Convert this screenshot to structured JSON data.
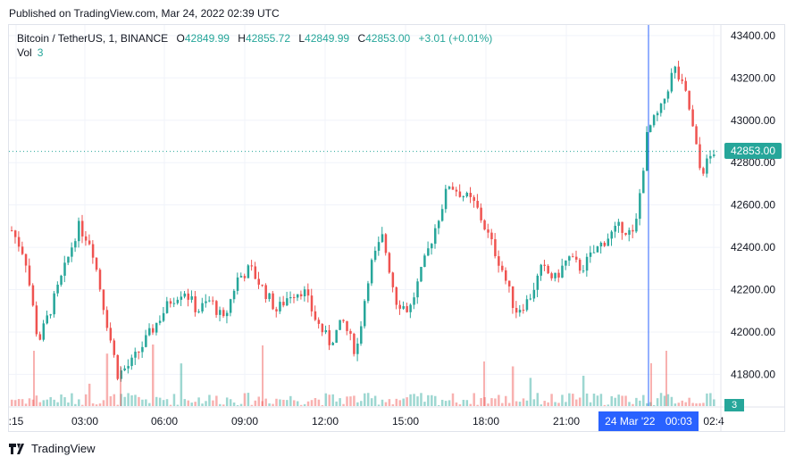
{
  "header": {
    "published": "Published on TradingView.com, Mar 24, 2022 02:39 UTC"
  },
  "legend": {
    "symbol": "Bitcoin / TetherUS, 1, BINANCE",
    "open_label": "O",
    "open": "42849.99",
    "high_label": "H",
    "high": "42855.72",
    "low_label": "L",
    "low": "42849.99",
    "close_label": "C",
    "close": "42853.00",
    "change": "+3.01 (+0.01%)",
    "vol_label": "Vol",
    "vol": "3"
  },
  "last_price_label": "42853.00",
  "last_volume_label": "3",
  "cursor": {
    "date": "24 Mar '22",
    "time": "00:03"
  },
  "footer": {
    "brand": "TradingView"
  },
  "colors": {
    "up": "#26a69a",
    "down": "#ef5350",
    "cursor": "#2962ff",
    "grid": "#f0f3fa"
  },
  "chart_data": {
    "type": "line",
    "symbol": "BTCUSDT",
    "interval": "1 minute",
    "y_ticks": [
      41800,
      42000,
      42200,
      42400,
      42600,
      42800,
      43000,
      43200,
      43400
    ],
    "y_tick_labels": [
      "41800.00",
      "42000.00",
      "42200.00",
      "42400.00",
      "42600.00",
      "42800.00",
      "43000.00",
      "43200.00",
      "43400.00"
    ],
    "ylim": [
      41650,
      43450
    ],
    "x_ticks": [
      ":15",
      "03:00",
      "06:00",
      "09:00",
      "12:00",
      "15:00",
      "18:00",
      "21:00",
      "02:4"
    ],
    "x": [
      "00:15",
      "00:45",
      "01:15",
      "01:30",
      "02:00",
      "02:30",
      "03:00",
      "03:30",
      "04:00",
      "04:30",
      "05:00",
      "05:30",
      "06:00",
      "06:30",
      "07:00",
      "07:30",
      "08:00",
      "08:30",
      "09:00",
      "09:30",
      "10:00",
      "10:30",
      "11:00",
      "11:30",
      "12:00",
      "12:30",
      "13:00",
      "13:30",
      "14:00",
      "14:30",
      "15:00",
      "15:30",
      "16:00",
      "16:30",
      "17:00",
      "17:30",
      "18:00",
      "18:30",
      "19:00",
      "19:30",
      "20:00",
      "20:30",
      "21:00",
      "21:30",
      "22:00",
      "22:30",
      "23:00",
      "23:30",
      "00:00",
      "00:30",
      "01:00",
      "01:30",
      "02:00",
      "02:39"
    ],
    "close": [
      42480,
      42360,
      41950,
      42120,
      42300,
      42500,
      42420,
      42100,
      41800,
      41850,
      41950,
      42050,
      42150,
      42200,
      42100,
      42150,
      42050,
      42250,
      42300,
      42200,
      42100,
      42180,
      42200,
      42050,
      41950,
      42050,
      41900,
      42300,
      42450,
      42150,
      42100,
      42300,
      42500,
      42700,
      42650,
      42600,
      42450,
      42300,
      42100,
      42150,
      42300,
      42250,
      42350,
      42300,
      42380,
      42450,
      42500,
      42450,
      42950,
      43050,
      43250,
      43100,
      42750,
      42853
    ],
    "volume_peak": 3,
    "last_price": 42853.0,
    "cursor_time": "00:03"
  }
}
